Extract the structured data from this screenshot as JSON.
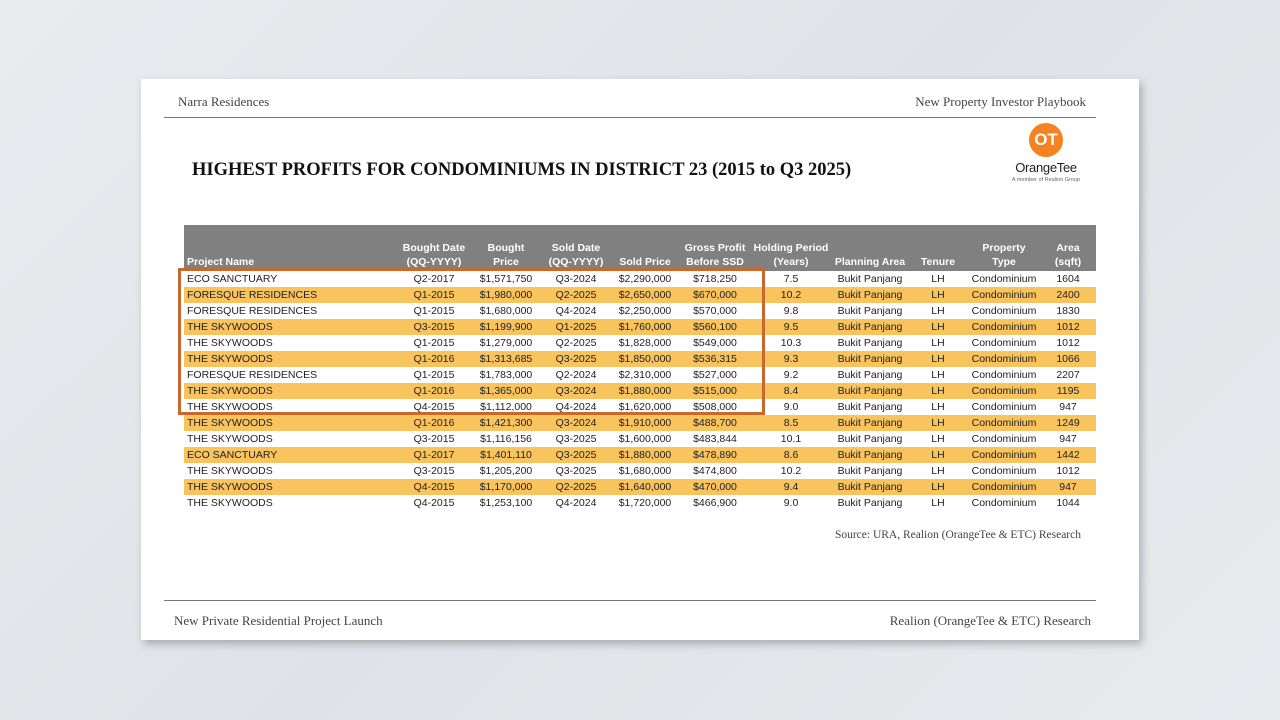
{
  "header": {
    "left": "Narra Residences",
    "right": "New Property Investor Playbook"
  },
  "title": "HIGHEST PROFITS FOR CONDOMINIUMS IN DISTRICT 23 (2015 to Q3 2025)",
  "logo": {
    "mark": "OT",
    "name": "OrangeTee",
    "tagline": "A member of Realion Group"
  },
  "table": {
    "columns": [
      [
        "",
        "Project Name"
      ],
      [
        "Bought Date",
        "(QQ-YYYY)"
      ],
      [
        "Bought",
        "Price"
      ],
      [
        "Sold Date",
        "(QQ-YYYY)"
      ],
      [
        "",
        "Sold Price"
      ],
      [
        "Gross Profit",
        "Before SSD"
      ],
      [
        "Holding Period",
        "(Years)"
      ],
      [
        "",
        "Planning Area"
      ],
      [
        "",
        "Tenure"
      ],
      [
        "",
        "Property Type"
      ],
      [
        "Area",
        "(sqft)"
      ]
    ],
    "rows": [
      [
        "ECO SANCTUARY",
        "Q2-2017",
        "$1,571,750",
        "Q3-2024",
        "$2,290,000",
        "$718,250",
        "7.5",
        "Bukit Panjang",
        "LH",
        "Condominium",
        "1604"
      ],
      [
        "FORESQUE RESIDENCES",
        "Q1-2015",
        "$1,980,000",
        "Q2-2025",
        "$2,650,000",
        "$670,000",
        "10.2",
        "Bukit Panjang",
        "LH",
        "Condominium",
        "2400"
      ],
      [
        "FORESQUE RESIDENCES",
        "Q1-2015",
        "$1,680,000",
        "Q4-2024",
        "$2,250,000",
        "$570,000",
        "9.8",
        "Bukit Panjang",
        "LH",
        "Condominium",
        "1830"
      ],
      [
        "THE SKYWOODS",
        "Q3-2015",
        "$1,199,900",
        "Q1-2025",
        "$1,760,000",
        "$560,100",
        "9.5",
        "Bukit Panjang",
        "LH",
        "Condominium",
        "1012"
      ],
      [
        "THE SKYWOODS",
        "Q1-2015",
        "$1,279,000",
        "Q2-2025",
        "$1,828,000",
        "$549,000",
        "10.3",
        "Bukit Panjang",
        "LH",
        "Condominium",
        "1012"
      ],
      [
        "THE SKYWOODS",
        "Q1-2016",
        "$1,313,685",
        "Q3-2025",
        "$1,850,000",
        "$536,315",
        "9.3",
        "Bukit Panjang",
        "LH",
        "Condominium",
        "1066"
      ],
      [
        "FORESQUE RESIDENCES",
        "Q1-2015",
        "$1,783,000",
        "Q2-2024",
        "$2,310,000",
        "$527,000",
        "9.2",
        "Bukit Panjang",
        "LH",
        "Condominium",
        "2207"
      ],
      [
        "THE SKYWOODS",
        "Q1-2016",
        "$1,365,000",
        "Q3-2024",
        "$1,880,000",
        "$515,000",
        "8.4",
        "Bukit Panjang",
        "LH",
        "Condominium",
        "1195"
      ],
      [
        "THE SKYWOODS",
        "Q4-2015",
        "$1,112,000",
        "Q4-2024",
        "$1,620,000",
        "$508,000",
        "9.0",
        "Bukit Panjang",
        "LH",
        "Condominium",
        "947"
      ],
      [
        "THE SKYWOODS",
        "Q1-2016",
        "$1,421,300",
        "Q3-2024",
        "$1,910,000",
        "$488,700",
        "8.5",
        "Bukit Panjang",
        "LH",
        "Condominium",
        "1249"
      ],
      [
        "THE SKYWOODS",
        "Q3-2015",
        "$1,116,156",
        "Q3-2025",
        "$1,600,000",
        "$483,844",
        "10.1",
        "Bukit Panjang",
        "LH",
        "Condominium",
        "947"
      ],
      [
        "ECO SANCTUARY",
        "Q1-2017",
        "$1,401,110",
        "Q3-2025",
        "$1,880,000",
        "$478,890",
        "8.6",
        "Bukit Panjang",
        "LH",
        "Condominium",
        "1442"
      ],
      [
        "THE SKYWOODS",
        "Q3-2015",
        "$1,205,200",
        "Q3-2025",
        "$1,680,000",
        "$474,800",
        "10.2",
        "Bukit Panjang",
        "LH",
        "Condominium",
        "1012"
      ],
      [
        "THE SKYWOODS",
        "Q4-2015",
        "$1,170,000",
        "Q2-2025",
        "$1,640,000",
        "$470,000",
        "9.4",
        "Bukit Panjang",
        "LH",
        "Condominium",
        "947"
      ],
      [
        "THE SKYWOODS",
        "Q4-2015",
        "$1,253,100",
        "Q4-2024",
        "$1,720,000",
        "$466,900",
        "9.0",
        "Bukit Panjang",
        "LH",
        "Condominium",
        "1044"
      ]
    ]
  },
  "source": "Source: URA, Realion (OrangeTee & ETC) Research",
  "footer": {
    "left": "New Private Residential Project Launch",
    "right": "Realion (OrangeTee & ETC) Research"
  },
  "colors": {
    "header_bg": "#808080",
    "stripe": "#f9c35e",
    "highlight_box": "#c9682c",
    "brand": "#f58220"
  }
}
